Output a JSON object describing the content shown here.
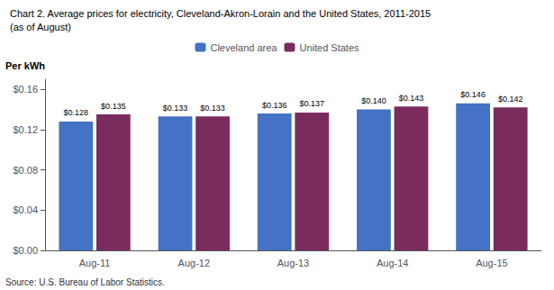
{
  "chart_data": {
    "type": "bar",
    "title": "Chart 2. Average prices for electricity, Cleveland-Akron-Lorain and the United States, 2011-2015",
    "subtitle": "(as of August)",
    "ylabel": "Per kWh",
    "annotations": [
      "Source: U.S. Bureau of Labor Statistics."
    ],
    "categories": [
      "Aug-11",
      "Aug-12",
      "Aug-13",
      "Aug-14",
      "Aug-15"
    ],
    "series": [
      {
        "name": "Cleveland area",
        "color": "#4472C4",
        "values": [
          0.128,
          0.133,
          0.136,
          0.14,
          0.146
        ],
        "value_labels": [
          "$0.128",
          "$0.133",
          "$0.136",
          "$0.140",
          "$0.146"
        ]
      },
      {
        "name": "United States",
        "color": "#7B2C5E",
        "values": [
          0.135,
          0.133,
          0.137,
          0.143,
          0.142
        ],
        "value_labels": [
          "$0.135",
          "$0.133",
          "$0.137",
          "$0.143",
          "$0.142"
        ]
      }
    ],
    "ylim": [
      0.0,
      0.17
    ],
    "yticks": [
      {
        "value": 0.0,
        "label": "$0.00"
      },
      {
        "value": 0.04,
        "label": "$0.04"
      },
      {
        "value": 0.08,
        "label": "$0.08"
      },
      {
        "value": 0.12,
        "label": "$0.12"
      },
      {
        "value": 0.16,
        "label": "$0.16"
      }
    ],
    "data_labels": true,
    "grid": false,
    "legend": "top"
  }
}
